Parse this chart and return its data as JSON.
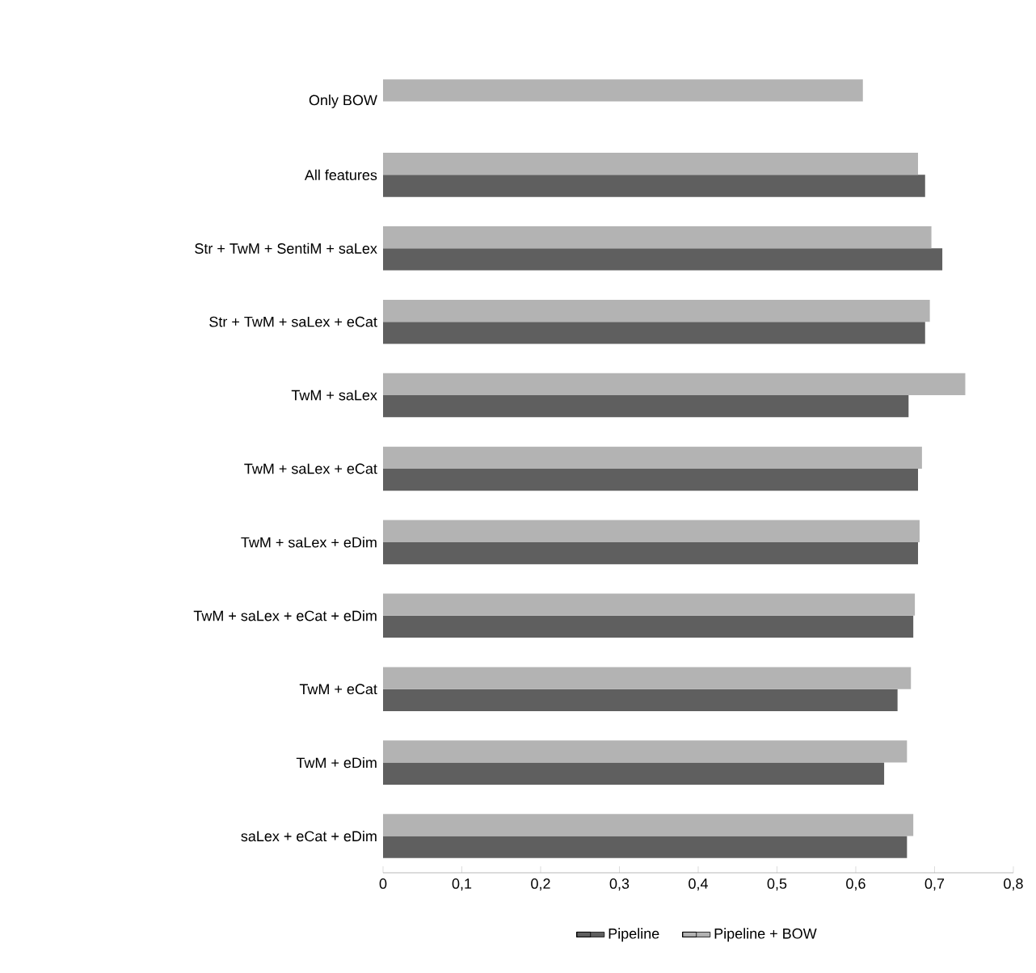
{
  "chart_data": {
    "type": "bar",
    "orientation": "horizontal",
    "categories": [
      "Only BOW",
      "All features",
      "Str + TwM + SentiM + saLex",
      "Str + TwM + saLex + eCat",
      "TwM + saLex",
      "TwM + saLex + eCat",
      "TwM + saLex + eDim",
      "TwM + saLex + eCat + eDim",
      "TwM + eCat",
      "TwM + eDim",
      "saLex + eCat + eDim"
    ],
    "series": [
      {
        "name": "Pipeline",
        "color": "#5f5f5f",
        "values": [
          null,
          0.688,
          0.71,
          0.688,
          0.667,
          0.679,
          0.679,
          0.673,
          0.653,
          0.636,
          0.665
        ]
      },
      {
        "name": "Pipeline + BOW",
        "color": "#b3b3b3",
        "values": [
          0.609,
          0.679,
          0.696,
          0.694,
          0.739,
          0.684,
          0.681,
          0.675,
          0.67,
          0.665,
          0.673
        ]
      }
    ],
    "xlim": [
      0,
      0.8
    ],
    "xticks": [
      0,
      {
        "value": 0.1,
        "label": "0,1"
      },
      {
        "value": 0.2,
        "label": "0,2"
      },
      {
        "value": 0.3,
        "label": "0,3"
      },
      {
        "value": 0.4,
        "label": "0,4"
      },
      {
        "value": 0.5,
        "label": "0,5"
      },
      {
        "value": 0.6,
        "label": "0,6"
      },
      {
        "value": 0.7,
        "label": "0,7"
      },
      {
        "value": 0.8,
        "label": "0,8"
      }
    ],
    "legend": "bottom",
    "grid": false
  }
}
